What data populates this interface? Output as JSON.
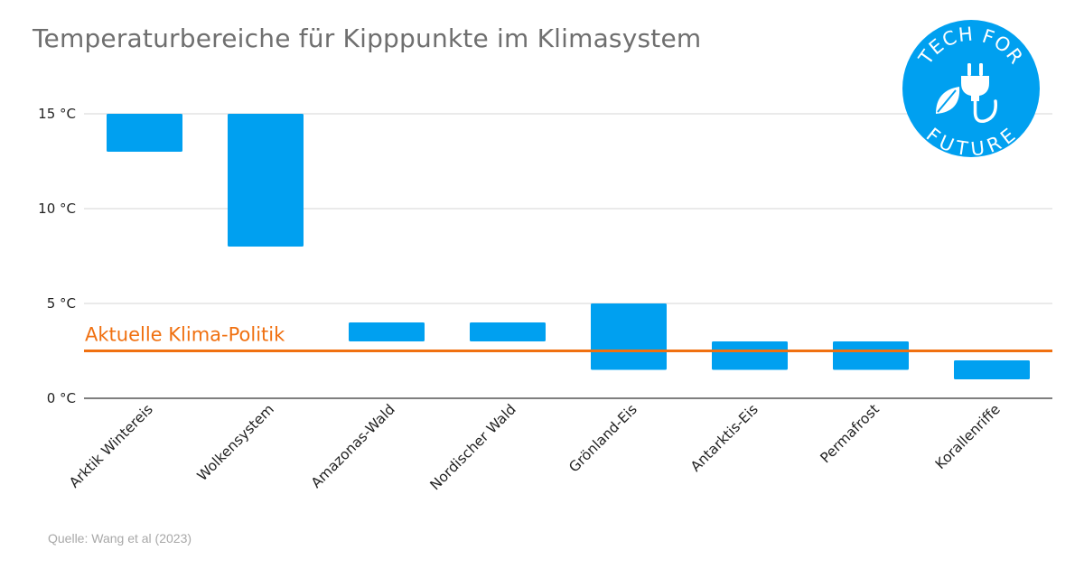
{
  "title": "Temperaturbereiche für Kipppunkte im Klimasystem",
  "source": "Quelle: Wang et al (2023)",
  "colors": {
    "bar": "#00a0f0",
    "reference": "#f07010",
    "grid": "#d4d4d4",
    "axis": "#333333",
    "logo": "#00a0f0"
  },
  "logo": {
    "top_text": "TECH FOR",
    "bottom_text": "FUTURE",
    "icons": [
      "plug-icon",
      "leaf-icon"
    ]
  },
  "chart_data": {
    "type": "bar",
    "subtype": "floating-range",
    "categories": [
      "Arktik Wintereis",
      "Wolkensystem",
      "Amazonas-Wald",
      "Nordischer Wald",
      "Grönland-Eis",
      "Antarktis-Eis",
      "Permafrost",
      "Korallenriffe"
    ],
    "series": [
      {
        "low": [
          13,
          8,
          3,
          3,
          1.5,
          1.5,
          1.5,
          1
        ],
        "high": [
          15,
          15,
          4,
          4,
          5,
          3,
          3,
          2
        ]
      }
    ],
    "y_ticks": [
      "0 °C",
      "5 °C",
      "10 °C",
      "15 °C"
    ],
    "y_tick_values": [
      0,
      5,
      10,
      15
    ],
    "ylim": [
      0,
      15
    ],
    "grid": true,
    "reference_line": {
      "label": "Aktuelle Klima-Politik",
      "value": 2.5
    }
  }
}
